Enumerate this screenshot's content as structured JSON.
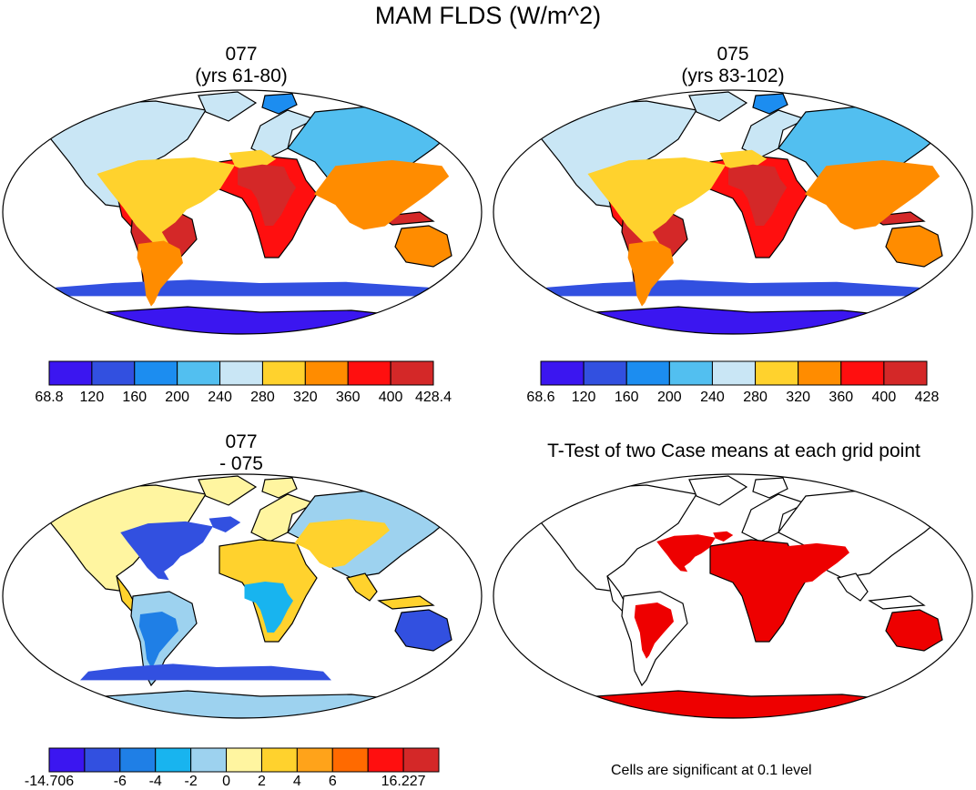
{
  "title": "MAM FLDS (W/m^2)",
  "colors": {
    "flds_scale": [
      "#3b16f0",
      "#3250e0",
      "#1c8df0",
      "#52bff0",
      "#c9e6f5",
      "#ffd22d",
      "#ff8c00",
      "#ff0f0f",
      "#d42828"
    ],
    "diff_scale": [
      "#3b16f0",
      "#3250e0",
      "#1f7fe6",
      "#18b4ef",
      "#9dd2ef",
      "#fff5a0",
      "#ffd22d",
      "#ffa31a",
      "#ff6a00",
      "#ff0f0f",
      "#d42828"
    ],
    "significant": "#ee0000",
    "ocean": "#ffffff",
    "coast": "#000000"
  },
  "chart_data": [
    {
      "type": "heatmap",
      "id": "map-077",
      "title": "077",
      "subtitle": "(yrs 61-80)",
      "projection": "robinson",
      "colorbar": {
        "levels": [
          "68.8",
          "120",
          "160",
          "200",
          "240",
          "280",
          "320",
          "360",
          "400",
          "428.4"
        ]
      }
    },
    {
      "type": "heatmap",
      "id": "map-075",
      "title": "075",
      "subtitle": "(yrs 83-102)",
      "projection": "robinson",
      "colorbar": {
        "levels": [
          "68.6",
          "120",
          "160",
          "200",
          "240",
          "280",
          "320",
          "360",
          "400",
          "428"
        ]
      }
    },
    {
      "type": "heatmap",
      "id": "map-diff",
      "title": "077",
      "subtitle": "- 075",
      "projection": "robinson",
      "colorbar": {
        "levels": [
          "-14.706",
          "",
          "-6",
          "-4",
          "-2",
          "0",
          "2",
          "4",
          "6",
          "",
          "16.227"
        ]
      }
    },
    {
      "type": "heatmap",
      "id": "map-ttest",
      "title": "T-Test of two Case means at each grid point",
      "projection": "robinson",
      "note": "Cells are significant at 0.1 level"
    }
  ]
}
